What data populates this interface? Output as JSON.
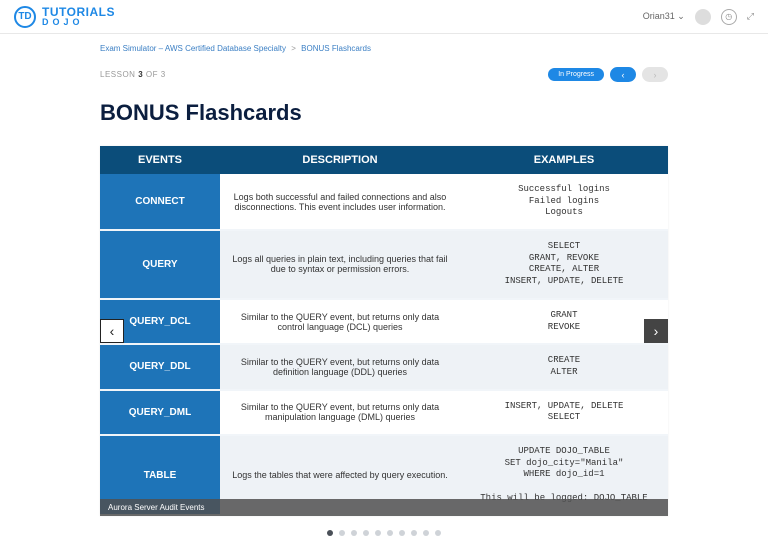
{
  "header": {
    "logo_initials": "TD",
    "logo_line1": "TUTORIALS",
    "logo_line2": "DOJO",
    "username": "Orian31",
    "chevron": "⌄",
    "clock_icon": "◷",
    "expand_icon": "⤢"
  },
  "breadcrumb": {
    "item1": "Exam Simulator – AWS Certified Database Specialty",
    "sep": ">",
    "item2": "BONUS Flashcards"
  },
  "lesson": {
    "prefix": "LESSON",
    "num": "3",
    "of": "OF 3",
    "status": "In Progress",
    "prev_glyph": "‹",
    "next_glyph": "›"
  },
  "title": "BONUS Flashcards",
  "table": {
    "headers": {
      "events": "EVENTS",
      "description": "DESCRIPTION",
      "examples": "EXAMPLES"
    },
    "rows": [
      {
        "event": "CONNECT",
        "description": "Logs both successful and failed connections and also disconnections. This event includes user information.",
        "examples": "Successful logins\nFailed logins\nLogouts"
      },
      {
        "event": "QUERY",
        "description": "Logs all queries in plain text, including queries that fail due to syntax or permission errors.",
        "examples": "SELECT\nGRANT, REVOKE\nCREATE, ALTER\nINSERT, UPDATE, DELETE"
      },
      {
        "event": "QUERY_DCL",
        "description": "Similar to the QUERY event, but returns only data control language (DCL) queries",
        "examples": "GRANT\nREVOKE"
      },
      {
        "event": "QUERY_DDL",
        "description": "Similar to the QUERY event, but returns only data definition language (DDL) queries",
        "examples": "CREATE\nALTER"
      },
      {
        "event": "QUERY_DML",
        "description": "Similar to the QUERY event, but returns only data manipulation language (DML) queries",
        "examples": "INSERT, UPDATE, DELETE\nSELECT"
      },
      {
        "event": "TABLE",
        "description": "Logs the tables that were affected by query execution.",
        "examples": "UPDATE DOJO_TABLE\nSET dojo_city=\"Manila\"\nWHERE dojo_id=1\n\nThis will be logged: DOJO_TABLE"
      }
    ]
  },
  "caption": "Aurora Server Audit Events",
  "arrows": {
    "left": "‹",
    "right": "›"
  },
  "dots": {
    "count": 10,
    "active": 0
  },
  "colors": {
    "brand_blue": "#1e88e5",
    "header_dark": "#0b4d7a",
    "cell_blue": "#1e74b8",
    "row_alt": "#eef2f6",
    "title_navy": "#0b1e3f"
  }
}
